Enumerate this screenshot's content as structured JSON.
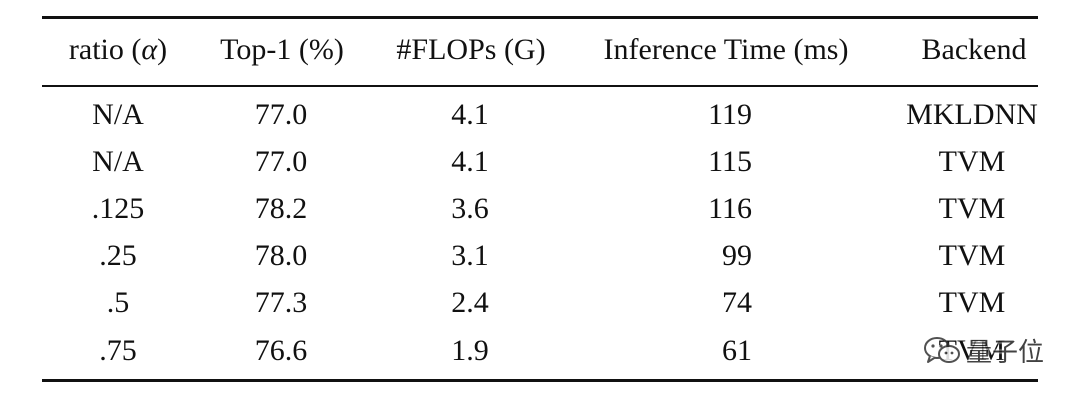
{
  "table": {
    "headers": {
      "ratio_prefix": "ratio (",
      "ratio_symbol": "α",
      "ratio_suffix": ")",
      "top1": "Top-1 (%)",
      "flops": "#FLOPs (G)",
      "inference": "Inference Time (ms)",
      "backend": "Backend"
    },
    "rows": [
      {
        "ratio": "N/A",
        "top1": "77.0",
        "flops": "4.1",
        "inference": "119",
        "backend": "MKLDNN"
      },
      {
        "ratio": "N/A",
        "top1": "77.0",
        "flops": "4.1",
        "inference": "115",
        "backend": "TVM"
      },
      {
        "ratio": ".125",
        "top1": "78.2",
        "flops": "3.6",
        "inference": "116",
        "backend": "TVM"
      },
      {
        "ratio": ".25",
        "top1": "78.0",
        "flops": "3.1",
        "inference": "99",
        "backend": "TVM"
      },
      {
        "ratio": ".5",
        "top1": "77.3",
        "flops": "2.4",
        "inference": "74",
        "backend": "TVM"
      },
      {
        "ratio": ".75",
        "top1": "76.6",
        "flops": "1.9",
        "inference": "61",
        "backend": "TVM"
      }
    ]
  },
  "watermark": {
    "text": "量子位"
  }
}
